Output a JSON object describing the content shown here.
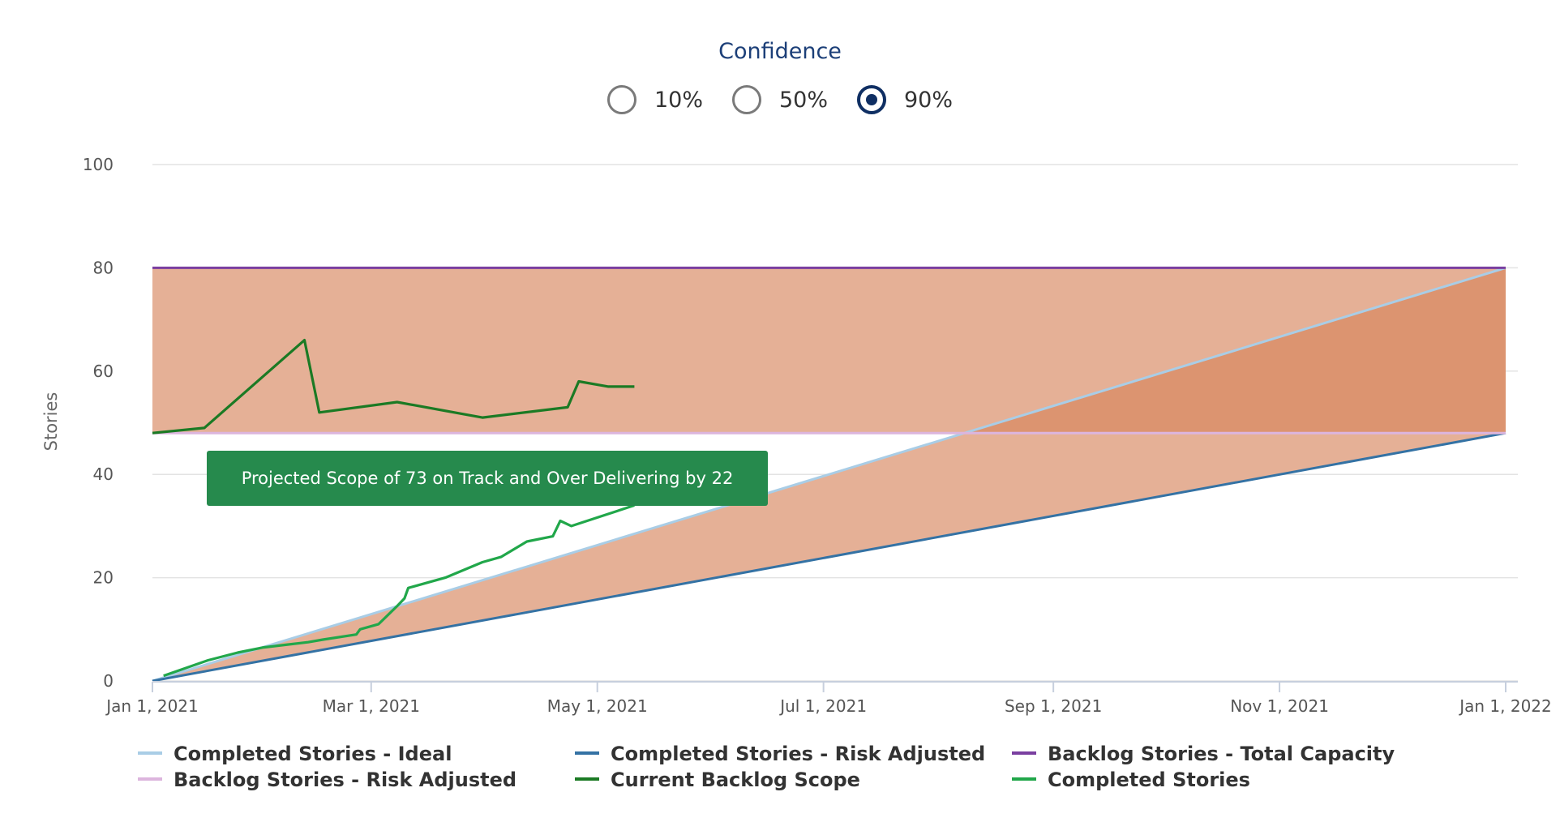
{
  "confidence": {
    "title": "Confidence",
    "options": [
      {
        "label": "10%",
        "selected": false
      },
      {
        "label": "50%",
        "selected": false
      },
      {
        "label": "90%",
        "selected": true
      }
    ]
  },
  "chart_data": {
    "type": "line",
    "title": "",
    "ylabel": "Stories",
    "xlabel": "",
    "x_range": [
      "2021-01-01",
      "2022-01-01"
    ],
    "ylim": [
      0,
      100
    ],
    "y_ticks": [
      0,
      20,
      40,
      60,
      80,
      100
    ],
    "x_ticks": [
      {
        "date": "2021-01-01",
        "label": "Jan 1, 2021"
      },
      {
        "date": "2021-03-01",
        "label": "Mar 1, 2021"
      },
      {
        "date": "2021-05-01",
        "label": "May 1, 2021"
      },
      {
        "date": "2021-07-01",
        "label": "Jul 1, 2021"
      },
      {
        "date": "2021-09-01",
        "label": "Sep 1, 2021"
      },
      {
        "date": "2021-11-01",
        "label": "Nov 1, 2021"
      },
      {
        "date": "2022-01-01",
        "label": "Jan 1, 2022"
      }
    ],
    "grid": true,
    "legend_position": "bottom",
    "annotation": {
      "text": "Projected Scope of 73 on Track and Over Delivering by 22",
      "color": "#268a4d"
    },
    "colors": {
      "band_fill": "#e5b096",
      "overlap_fill": "#dc9470"
    },
    "series": [
      {
        "name": "Completed Stories - Ideal",
        "color": "#a9cde6",
        "points": [
          [
            "2021-01-01",
            0
          ],
          [
            "2022-01-01",
            80
          ]
        ]
      },
      {
        "name": "Completed Stories - Risk Adjusted",
        "color": "#3472a4",
        "points": [
          [
            "2021-01-01",
            0
          ],
          [
            "2022-01-01",
            48
          ]
        ]
      },
      {
        "name": "Backlog Stories - Total Capacity",
        "color": "#7a3fa0",
        "points": [
          [
            "2021-01-01",
            80
          ],
          [
            "2022-01-01",
            80
          ]
        ]
      },
      {
        "name": "Backlog Stories - Risk Adjusted",
        "color": "#dcb5dd",
        "points": [
          [
            "2021-01-01",
            48
          ],
          [
            "2022-01-01",
            48
          ]
        ]
      },
      {
        "name": "Current Backlog Scope",
        "color": "#1b7a24",
        "points": [
          [
            "2021-01-01",
            48
          ],
          [
            "2021-01-15",
            49
          ],
          [
            "2021-02-11",
            66
          ],
          [
            "2021-02-15",
            52
          ],
          [
            "2021-03-08",
            54
          ],
          [
            "2021-03-31",
            51
          ],
          [
            "2021-04-23",
            53
          ],
          [
            "2021-04-26",
            58
          ],
          [
            "2021-05-04",
            57
          ],
          [
            "2021-05-11",
            57
          ]
        ]
      },
      {
        "name": "Completed Stories",
        "color": "#21a74a",
        "points": [
          [
            "2021-01-04",
            1
          ],
          [
            "2021-01-12",
            3
          ],
          [
            "2021-01-16",
            4
          ],
          [
            "2021-01-24",
            5.5
          ],
          [
            "2021-01-31",
            6.5
          ],
          [
            "2021-02-06",
            7
          ],
          [
            "2021-02-12",
            7.5
          ],
          [
            "2021-02-16",
            8
          ],
          [
            "2021-02-25",
            9
          ],
          [
            "2021-02-26",
            10
          ],
          [
            "2021-03-03",
            11
          ],
          [
            "2021-03-08",
            14.5
          ],
          [
            "2021-03-10",
            16
          ],
          [
            "2021-03-11",
            18
          ],
          [
            "2021-03-21",
            20
          ],
          [
            "2021-03-31",
            23
          ],
          [
            "2021-04-05",
            24
          ],
          [
            "2021-04-12",
            27
          ],
          [
            "2021-04-19",
            28
          ],
          [
            "2021-04-21",
            31
          ],
          [
            "2021-04-24",
            30
          ],
          [
            "2021-05-11",
            34
          ]
        ]
      }
    ]
  }
}
